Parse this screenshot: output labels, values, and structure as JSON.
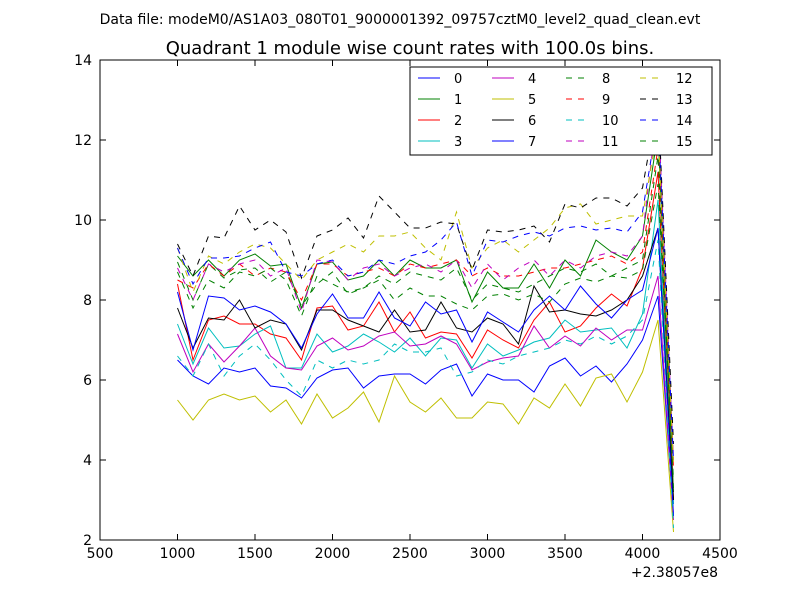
{
  "chart_data": {
    "type": "line",
    "suptitle": "Data file: modeM0/AS1A03_080T01_9000001392_09757cztM0_level2_quad_clean.evt",
    "title": "Quadrant 1 module wise count rates with 100.0s bins.",
    "xlabel": "",
    "ylabel": "",
    "x_offset_label": "+2.38057e8",
    "xlim": [
      500,
      4500
    ],
    "ylim": [
      2,
      14
    ],
    "xticks": [
      500,
      1000,
      1500,
      2000,
      2500,
      3000,
      3500,
      4000,
      4500
    ],
    "yticks": [
      2,
      4,
      6,
      8,
      10,
      12,
      14
    ],
    "legend_position": "top-right",
    "legend_columns": 4,
    "x": [
      1000,
      1100,
      1200,
      1300,
      1400,
      1500,
      1600,
      1700,
      1800,
      1900,
      2000,
      2100,
      2200,
      2300,
      2400,
      2500,
      2600,
      2700,
      2800,
      2900,
      3000,
      3100,
      3200,
      3300,
      3400,
      3500,
      3600,
      3700,
      3800,
      3900,
      4000,
      4100,
      4200
    ],
    "series": [
      {
        "name": "0",
        "color": "#0000ff",
        "dash": "solid",
        "values": [
          6.5,
          6.1,
          5.9,
          6.3,
          6.2,
          6.3,
          5.85,
          5.8,
          5.55,
          6.05,
          6.25,
          6.3,
          5.8,
          6.1,
          6.15,
          6.15,
          5.9,
          6.25,
          6.4,
          5.6,
          6.15,
          6.0,
          6.0,
          5.7,
          6.35,
          6.55,
          6.1,
          6.35,
          5.95,
          6.4,
          7.0,
          8.1,
          2.6
        ]
      },
      {
        "name": "1",
        "color": "#008000",
        "dash": "solid",
        "values": [
          9.1,
          8.6,
          9.0,
          8.6,
          9.0,
          9.15,
          8.85,
          8.9,
          7.8,
          8.9,
          8.95,
          8.5,
          8.6,
          9.0,
          8.6,
          9.0,
          8.8,
          8.8,
          9.0,
          7.95,
          8.7,
          8.3,
          8.3,
          8.9,
          8.3,
          9.0,
          8.6,
          9.5,
          9.2,
          9.0,
          9.6,
          12.2,
          3.2
        ]
      },
      {
        "name": "2",
        "color": "#ff0000",
        "dash": "solid",
        "values": [
          8.4,
          6.5,
          7.5,
          7.6,
          7.4,
          7.4,
          7.15,
          7.05,
          6.5,
          7.8,
          7.85,
          7.25,
          7.35,
          7.95,
          7.2,
          7.7,
          7.05,
          7.2,
          7.15,
          6.55,
          7.25,
          7.0,
          6.8,
          7.5,
          7.95,
          7.2,
          7.35,
          7.8,
          8.15,
          7.85,
          8.8,
          11.2,
          3.0
        ]
      },
      {
        "name": "3",
        "color": "#00bfbf",
        "dash": "solid",
        "values": [
          7.4,
          6.4,
          7.3,
          6.8,
          6.85,
          7.15,
          7.35,
          6.3,
          6.3,
          7.15,
          6.7,
          6.85,
          7.15,
          6.95,
          6.7,
          7.05,
          6.6,
          7.05,
          7.0,
          6.3,
          6.9,
          6.6,
          6.75,
          6.95,
          7.05,
          7.5,
          7.2,
          7.25,
          7.3,
          6.8,
          7.65,
          10.5,
          2.9
        ]
      },
      {
        "name": "4",
        "color": "#bf00bf",
        "dash": "solid",
        "values": [
          7.15,
          6.2,
          6.9,
          6.45,
          6.85,
          7.3,
          6.6,
          6.3,
          6.25,
          6.85,
          7.05,
          6.75,
          6.85,
          7.1,
          7.2,
          6.85,
          6.9,
          7.1,
          6.9,
          6.25,
          6.45,
          6.55,
          6.6,
          7.35,
          6.8,
          7.1,
          6.85,
          7.3,
          7.0,
          7.25,
          7.25,
          8.6,
          2.5
        ]
      },
      {
        "name": "5",
        "color": "#bfbf00",
        "dash": "solid",
        "values": [
          5.5,
          5.0,
          5.5,
          5.65,
          5.5,
          5.6,
          5.2,
          5.5,
          4.9,
          5.65,
          5.05,
          5.3,
          5.7,
          4.95,
          6.1,
          5.45,
          5.2,
          5.55,
          5.05,
          5.05,
          5.45,
          5.4,
          4.9,
          5.55,
          5.3,
          5.9,
          5.35,
          6.05,
          6.15,
          5.45,
          6.2,
          7.5,
          2.2
        ]
      },
      {
        "name": "6",
        "color": "#000000",
        "dash": "solid",
        "values": [
          7.8,
          6.8,
          7.55,
          7.5,
          8.0,
          7.3,
          7.5,
          7.4,
          6.75,
          7.75,
          7.75,
          7.5,
          7.35,
          7.2,
          7.75,
          7.2,
          7.25,
          7.95,
          7.3,
          7.2,
          7.55,
          7.4,
          6.9,
          8.35,
          7.7,
          7.75,
          7.65,
          7.6,
          7.75,
          8.0,
          8.6,
          9.8,
          3.0
        ]
      },
      {
        "name": "7",
        "color": "#0000ff",
        "dash": "solid",
        "values": [
          8.2,
          6.75,
          8.1,
          8.05,
          7.75,
          7.85,
          7.7,
          7.4,
          6.8,
          7.65,
          8.15,
          7.55,
          7.55,
          8.2,
          7.55,
          7.35,
          7.95,
          7.65,
          7.75,
          6.95,
          7.7,
          7.45,
          7.2,
          7.75,
          8.1,
          7.75,
          8.35,
          7.9,
          7.55,
          8.0,
          8.25,
          9.8,
          2.6
        ]
      },
      {
        "name": "8",
        "color": "#008000",
        "dash": "dashed",
        "values": [
          8.95,
          8.0,
          8.9,
          8.55,
          8.75,
          8.8,
          8.45,
          8.7,
          7.85,
          8.4,
          8.7,
          8.15,
          8.3,
          8.5,
          8.0,
          8.3,
          8.1,
          8.1,
          7.9,
          7.75,
          8.1,
          8.15,
          8.0,
          8.15,
          7.95,
          8.4,
          8.55,
          8.45,
          8.6,
          8.55,
          8.75,
          10.9,
          3.5
        ]
      },
      {
        "name": "9",
        "color": "#ff0000",
        "dash": "dashed",
        "values": [
          8.5,
          8.3,
          8.9,
          8.6,
          8.9,
          8.6,
          8.8,
          8.7,
          8.0,
          8.9,
          8.9,
          8.6,
          8.7,
          8.8,
          8.6,
          8.9,
          8.8,
          8.9,
          9.0,
          8.6,
          8.8,
          8.6,
          8.6,
          8.7,
          8.8,
          8.8,
          8.9,
          9.0,
          9.1,
          8.9,
          9.2,
          11.8,
          3.8
        ]
      },
      {
        "name": "10",
        "color": "#00bfbf",
        "dash": "dashed",
        "values": [
          6.6,
          6.1,
          6.9,
          6.1,
          6.6,
          6.9,
          6.5,
          6.0,
          5.6,
          6.5,
          6.3,
          6.5,
          6.4,
          6.5,
          6.9,
          6.7,
          6.7,
          6.8,
          6.1,
          6.2,
          6.5,
          6.4,
          6.6,
          6.7,
          6.8,
          7.0,
          6.9,
          7.1,
          6.9,
          7.1,
          7.5,
          9.5,
          2.3
        ]
      },
      {
        "name": "11",
        "color": "#bf00bf",
        "dash": "dashed",
        "values": [
          8.8,
          8.0,
          8.9,
          8.7,
          8.9,
          9.0,
          8.6,
          8.8,
          7.7,
          9.0,
          8.95,
          8.5,
          8.8,
          8.9,
          8.6,
          8.8,
          8.9,
          8.7,
          9.0,
          8.3,
          8.9,
          8.5,
          8.8,
          9.0,
          8.6,
          9.0,
          8.8,
          9.1,
          9.2,
          9.1,
          9.6,
          12.9,
          4.0
        ]
      },
      {
        "name": "12",
        "color": "#bfbf00",
        "dash": "dashed",
        "values": [
          9.3,
          8.2,
          9.1,
          8.9,
          9.2,
          9.4,
          9.3,
          8.9,
          8.5,
          9.0,
          9.2,
          9.4,
          9.2,
          9.6,
          9.6,
          9.7,
          9.3,
          9.0,
          10.2,
          8.8,
          9.3,
          9.5,
          9.2,
          9.5,
          9.8,
          10.3,
          10.4,
          9.9,
          10.0,
          10.1,
          10.1,
          12.3,
          3.9
        ]
      },
      {
        "name": "13",
        "color": "#000000",
        "dash": "dashed",
        "values": [
          9.4,
          8.6,
          9.6,
          9.55,
          10.35,
          9.75,
          10.0,
          9.7,
          8.55,
          9.6,
          9.75,
          10.05,
          9.55,
          10.6,
          10.2,
          9.8,
          9.8,
          9.95,
          9.9,
          8.75,
          9.75,
          9.7,
          9.75,
          9.85,
          9.45,
          10.4,
          10.3,
          10.55,
          10.55,
          10.35,
          10.8,
          13.0,
          4.4
        ]
      },
      {
        "name": "14",
        "color": "#0000ff",
        "dash": "dashed",
        "values": [
          9.3,
          8.4,
          9.05,
          9.05,
          9.1,
          9.3,
          9.45,
          8.7,
          8.6,
          8.9,
          9.0,
          8.6,
          8.7,
          9.0,
          8.9,
          9.1,
          9.2,
          9.5,
          9.95,
          8.6,
          9.5,
          9.45,
          9.6,
          9.7,
          9.6,
          9.8,
          9.85,
          9.75,
          9.8,
          9.7,
          10.2,
          12.6,
          4.0
        ]
      },
      {
        "name": "15",
        "color": "#008000",
        "dash": "dashed",
        "values": [
          8.7,
          7.8,
          8.5,
          8.3,
          8.7,
          8.6,
          8.8,
          8.5,
          7.6,
          8.6,
          8.4,
          8.2,
          8.3,
          8.6,
          8.4,
          8.7,
          8.6,
          8.5,
          8.8,
          8.0,
          8.4,
          8.3,
          8.2,
          8.4,
          8.6,
          8.8,
          8.7,
          8.9,
          8.6,
          8.8,
          9.0,
          11.6,
          3.3
        ]
      }
    ]
  }
}
